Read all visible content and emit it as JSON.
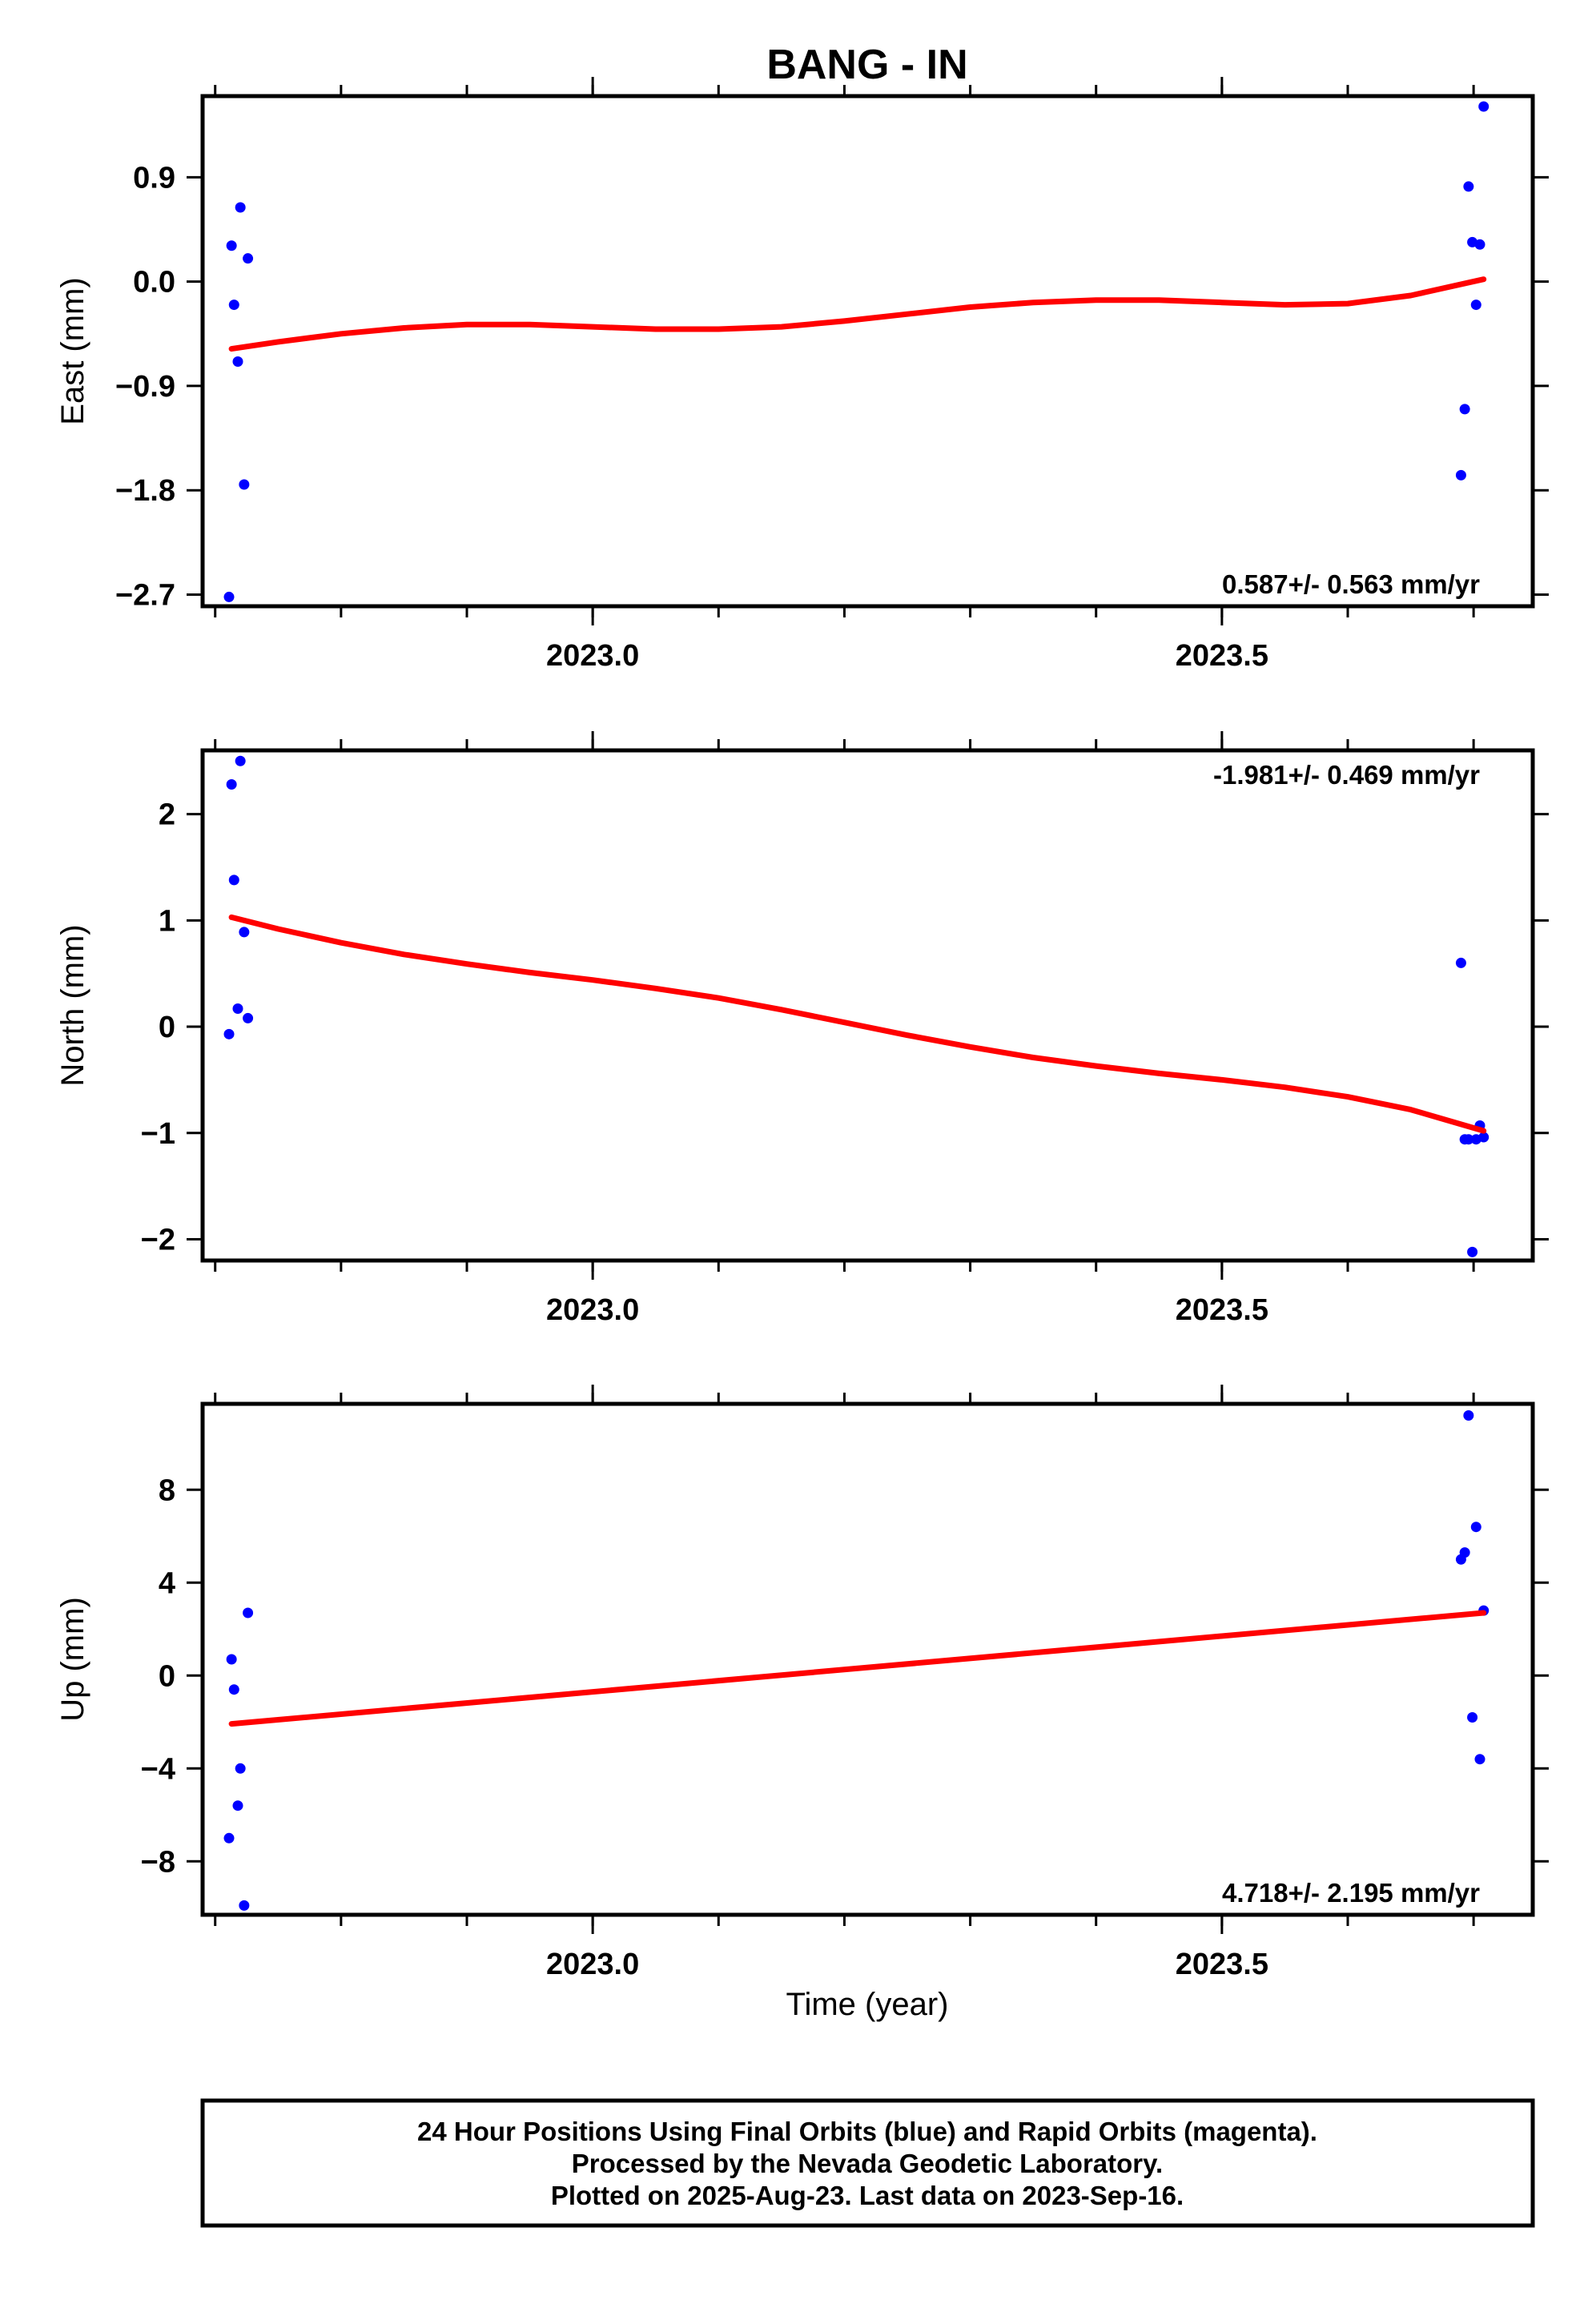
{
  "chart_data": {
    "type": "scatter",
    "title": "BANG - IN",
    "xlabel": "Time (year)",
    "xlim": [
      2022.69,
      2023.747
    ],
    "x_ticks": [
      "2023.0",
      "2023.5"
    ],
    "point_color": "#0000ff",
    "fit_color": "#ff0000",
    "panels": [
      {
        "name": "east",
        "ylabel": "East (mm)",
        "ylim": [
          -2.8,
          1.6
        ],
        "y_ticks": [
          {
            "value": 0.9,
            "label": "0.9"
          },
          {
            "value": 0.0,
            "label": "0.0"
          },
          {
            "value": -0.9,
            "label": "-0.9"
          },
          {
            "value": -1.8,
            "label": "-1.8"
          },
          {
            "value": -2.7,
            "label": "-2.7"
          }
        ],
        "rate": "0.587+/- 0.563 mm/yr",
        "rate_position": "bottom-right",
        "points": {
          "x": [
            2022.711,
            2022.713,
            2022.715,
            2022.718,
            2022.72,
            2022.723,
            2022.726,
            2023.69,
            2023.693,
            2023.696,
            2023.699,
            2023.702,
            2023.705,
            2023.708
          ],
          "y": [
            -2.72,
            0.31,
            -0.2,
            -0.69,
            0.64,
            -1.75,
            0.2,
            -1.67,
            -1.1,
            0.82,
            0.34,
            -0.2,
            0.32,
            1.51
          ]
        },
        "fit": {
          "x": [
            2022.713,
            2022.75,
            2022.8,
            2022.85,
            2022.9,
            2022.95,
            2023.0,
            2023.05,
            2023.1,
            2023.15,
            2023.2,
            2023.25,
            2023.3,
            2023.35,
            2023.4,
            2023.45,
            2023.5,
            2023.55,
            2023.6,
            2023.65,
            2023.708
          ],
          "y": [
            -0.58,
            -0.52,
            -0.45,
            -0.4,
            -0.37,
            -0.37,
            -0.39,
            -0.41,
            -0.41,
            -0.39,
            -0.34,
            -0.28,
            -0.22,
            -0.18,
            -0.16,
            -0.16,
            -0.18,
            -0.2,
            -0.19,
            -0.12,
            0.02
          ]
        }
      },
      {
        "name": "north",
        "ylabel": "North (mm)",
        "ylim": [
          -2.2,
          2.6
        ],
        "y_ticks": [
          {
            "value": 2,
            "label": "2"
          },
          {
            "value": 1,
            "label": "1"
          },
          {
            "value": 0,
            "label": "0"
          },
          {
            "value": -1,
            "label": "-1"
          },
          {
            "value": -2,
            "label": "-2"
          }
        ],
        "rate": "-1.981+/- 0.469 mm/yr",
        "rate_position": "top-right",
        "points": {
          "x": [
            2022.711,
            2022.713,
            2022.715,
            2022.718,
            2022.72,
            2022.723,
            2022.726,
            2023.69,
            2023.693,
            2023.696,
            2023.699,
            2023.702,
            2023.705,
            2023.708
          ],
          "y": [
            -0.07,
            2.28,
            1.38,
            0.17,
            2.5,
            0.89,
            0.08,
            0.6,
            -1.06,
            -1.06,
            -2.12,
            -1.06,
            -0.93,
            -1.04
          ]
        },
        "fit": {
          "x": [
            2022.713,
            2022.75,
            2022.8,
            2022.85,
            2022.9,
            2022.95,
            2023.0,
            2023.05,
            2023.1,
            2023.15,
            2023.2,
            2023.25,
            2023.3,
            2023.35,
            2023.4,
            2023.45,
            2023.5,
            2023.55,
            2023.6,
            2023.65,
            2023.708
          ],
          "y": [
            1.03,
            0.92,
            0.79,
            0.68,
            0.59,
            0.51,
            0.44,
            0.36,
            0.27,
            0.16,
            0.04,
            -0.08,
            -0.19,
            -0.29,
            -0.37,
            -0.44,
            -0.5,
            -0.57,
            -0.66,
            -0.78,
            -0.98
          ]
        }
      },
      {
        "name": "up",
        "ylabel": "Up (mm)",
        "ylim": [
          -10.3,
          11.7
        ],
        "y_ticks": [
          {
            "value": 8,
            "label": "8"
          },
          {
            "value": 4,
            "label": "4"
          },
          {
            "value": 0,
            "label": "0"
          },
          {
            "value": -4,
            "label": "-4"
          },
          {
            "value": -8,
            "label": "-8"
          }
        ],
        "rate": "4.718+/- 2.195 mm/yr",
        "rate_position": "bottom-right",
        "points": {
          "x": [
            2022.711,
            2022.713,
            2022.715,
            2022.718,
            2022.72,
            2022.723,
            2022.726,
            2023.69,
            2023.693,
            2023.696,
            2023.699,
            2023.702,
            2023.705,
            2023.708
          ],
          "y": [
            -7.0,
            0.7,
            -0.6,
            -5.6,
            -4.0,
            -9.9,
            2.7,
            5.0,
            5.3,
            11.2,
            -1.8,
            6.4,
            -3.6,
            2.8
          ]
        },
        "fit": {
          "x": [
            2022.713,
            2023.708
          ],
          "y": [
            -2.08,
            2.7
          ]
        }
      }
    ]
  },
  "footer": {
    "lines": [
      "24 Hour Positions Using Final Orbits (blue) and Rapid Orbits (magenta).",
      "Processed by the Nevada Geodetic Laboratory.",
      "Plotted on 2025-Aug-23. Last data on 2023-Sep-16."
    ]
  }
}
